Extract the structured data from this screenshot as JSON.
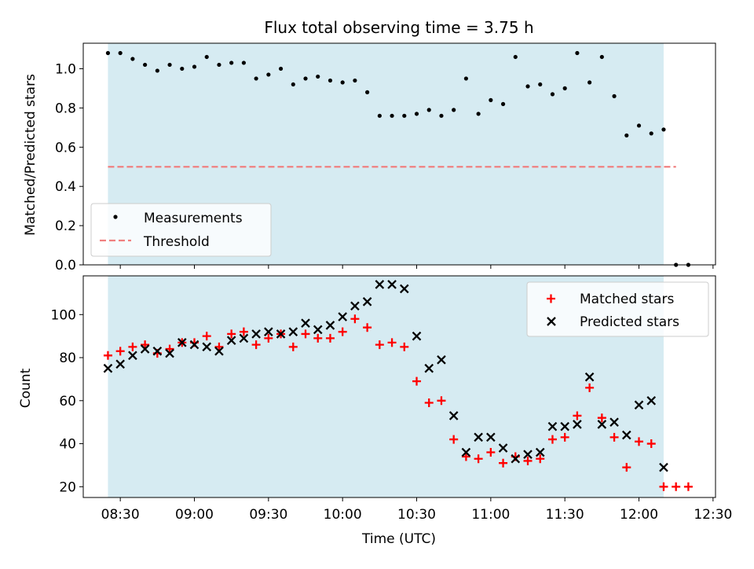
{
  "title": "Flux total observing time = 3.75 h",
  "colors": {
    "shade": "#add8e6",
    "threshold": "#f08080",
    "measurement": "#000000",
    "matched": "#ff0000",
    "predicted": "#000000"
  },
  "chart_data": [
    {
      "type": "scatter",
      "panel": "top",
      "ylabel": "Matched/Predicted stars",
      "xlabel": "",
      "ylim": [
        0.0,
        1.13
      ],
      "yticks": [
        "0.0",
        "0.2",
        "0.4",
        "0.6",
        "0.8",
        "1.0"
      ],
      "shaded_span": [
        "08:25",
        "12:10"
      ],
      "legend_position": "lower-left",
      "legend": {
        "measurements": "Measurements",
        "threshold": "Threshold"
      },
      "threshold": {
        "value": 0.5,
        "x": [
          "08:25",
          "12:15"
        ]
      },
      "series": [
        {
          "name": "Measurements",
          "x": [
            "08:25",
            "08:30",
            "08:35",
            "08:40",
            "08:45",
            "08:50",
            "08:55",
            "09:00",
            "09:05",
            "09:10",
            "09:15",
            "09:20",
            "09:25",
            "09:30",
            "09:35",
            "09:40",
            "09:45",
            "09:50",
            "09:55",
            "10:00",
            "10:05",
            "10:10",
            "10:15",
            "10:20",
            "10:25",
            "10:30",
            "10:35",
            "10:40",
            "10:45",
            "10:50",
            "10:55",
            "11:00",
            "11:05",
            "11:10",
            "11:15",
            "11:20",
            "11:25",
            "11:30",
            "11:35",
            "11:40",
            "11:45",
            "11:50",
            "11:55",
            "12:00",
            "12:05",
            "12:10",
            "12:15",
            "12:20"
          ],
          "y": [
            1.08,
            1.08,
            1.05,
            1.02,
            0.99,
            1.02,
            1.0,
            1.01,
            1.06,
            1.02,
            1.03,
            1.03,
            0.95,
            0.97,
            1.0,
            0.92,
            0.95,
            0.96,
            0.94,
            0.93,
            0.94,
            0.88,
            0.76,
            0.76,
            0.76,
            0.77,
            0.79,
            0.76,
            0.79,
            0.95,
            0.77,
            0.84,
            0.82,
            1.06,
            0.91,
            0.92,
            0.87,
            0.9,
            1.08,
            0.93,
            1.06,
            0.86,
            0.66,
            0.71,
            0.67,
            0.69,
            0.0,
            0.0
          ]
        }
      ]
    },
    {
      "type": "scatter",
      "panel": "bottom",
      "ylabel": "Count",
      "xlabel": "Time (UTC)",
      "ylim": [
        15,
        118
      ],
      "yticks": [
        "20",
        "40",
        "60",
        "80",
        "100"
      ],
      "xticks": [
        "08:30",
        "09:00",
        "09:30",
        "10:00",
        "10:30",
        "11:00",
        "11:30",
        "12:00",
        "12:30"
      ],
      "xlim": [
        "08:15",
        "12:31"
      ],
      "shaded_span": [
        "08:25",
        "12:10"
      ],
      "legend_position": "upper-right",
      "series": [
        {
          "name": "Matched stars",
          "x": [
            "08:25",
            "08:30",
            "08:35",
            "08:40",
            "08:45",
            "08:50",
            "08:55",
            "09:00",
            "09:05",
            "09:10",
            "09:15",
            "09:20",
            "09:25",
            "09:30",
            "09:35",
            "09:40",
            "09:45",
            "09:50",
            "09:55",
            "10:00",
            "10:05",
            "10:10",
            "10:15",
            "10:20",
            "10:25",
            "10:30",
            "10:35",
            "10:40",
            "10:45",
            "10:50",
            "10:55",
            "11:00",
            "11:05",
            "11:10",
            "11:15",
            "11:20",
            "11:25",
            "11:30",
            "11:35",
            "11:40",
            "11:45",
            "11:50",
            "11:55",
            "12:00",
            "12:05",
            "12:10",
            "12:15",
            "12:20"
          ],
          "y": [
            81,
            83,
            85,
            86,
            82,
            84,
            87,
            87,
            90,
            85,
            91,
            92,
            86,
            89,
            91,
            85,
            91,
            89,
            89,
            92,
            98,
            94,
            86,
            87,
            85,
            69,
            59,
            60,
            42,
            34,
            33,
            36,
            31,
            34,
            32,
            33,
            42,
            43,
            53,
            66,
            52,
            43,
            29,
            41,
            40,
            20,
            20,
            20
          ]
        },
        {
          "name": "Predicted stars",
          "x": [
            "08:25",
            "08:30",
            "08:35",
            "08:40",
            "08:45",
            "08:50",
            "08:55",
            "09:00",
            "09:05",
            "09:10",
            "09:15",
            "09:20",
            "09:25",
            "09:30",
            "09:35",
            "09:40",
            "09:45",
            "09:50",
            "09:55",
            "10:00",
            "10:05",
            "10:10",
            "10:15",
            "10:20",
            "10:25",
            "10:30",
            "10:35",
            "10:40",
            "10:45",
            "10:50",
            "10:55",
            "11:00",
            "11:05",
            "11:10",
            "11:15",
            "11:20",
            "11:25",
            "11:30",
            "11:35",
            "11:40",
            "11:45",
            "11:50",
            "11:55",
            "12:00",
            "12:05",
            "12:10"
          ],
          "y": [
            75,
            77,
            81,
            84,
            83,
            82,
            87,
            86,
            85,
            83,
            88,
            89,
            91,
            92,
            91,
            92,
            96,
            93,
            95,
            99,
            104,
            106,
            114,
            114,
            112,
            90,
            75,
            79,
            53,
            36,
            43,
            43,
            38,
            33,
            35,
            36,
            48,
            48,
            49,
            71,
            49,
            50,
            44,
            58,
            60,
            29
          ]
        }
      ]
    }
  ]
}
